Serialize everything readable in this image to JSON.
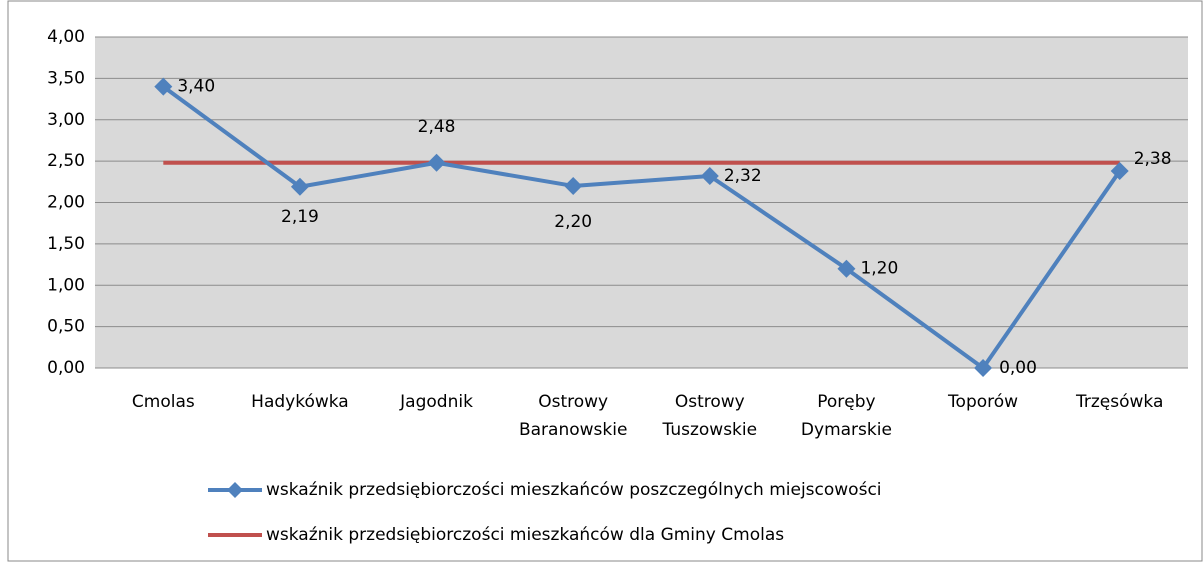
{
  "chart_data": {
    "type": "line",
    "categories": [
      "Cmolas",
      "Hadykówka",
      "Jagodnik",
      "Ostrowy Baranowskie",
      "Ostrowy Tuszowskie",
      "Poręby Dymarskie",
      "Toporów",
      "Trzęsówka"
    ],
    "series": [
      {
        "name": "wskaźnik przedsiębiorczości mieszkańców poszczególnych miejscowości",
        "color": "#4f81bd",
        "marker": "diamond",
        "values": [
          3.4,
          2.19,
          2.48,
          2.2,
          2.32,
          1.2,
          0.0,
          2.38
        ],
        "value_labels": [
          "3,40",
          "2,19",
          "2,48",
          "2,20",
          "2,32",
          "1,20",
          "0,00",
          "2,38"
        ]
      },
      {
        "name": "wskaźnik przedsiębiorczości mieszkańców dla Gminy Cmolas",
        "color": "#c0504d",
        "values": [
          2.48,
          2.48,
          2.48,
          2.48,
          2.48,
          2.48,
          2.48,
          2.48
        ]
      }
    ],
    "ylim": [
      0,
      4
    ],
    "yticks": [
      {
        "value": 0,
        "label": "0,00"
      },
      {
        "value": 0.5,
        "label": "0,50"
      },
      {
        "value": 1,
        "label": "1,00"
      },
      {
        "value": 1.5,
        "label": "1,50"
      },
      {
        "value": 2,
        "label": "2,00"
      },
      {
        "value": 2.5,
        "label": "2,50"
      },
      {
        "value": 3,
        "label": "3,00"
      },
      {
        "value": 3.5,
        "label": "3,50"
      },
      {
        "value": 4,
        "label": "4,00"
      }
    ],
    "grid": true,
    "legend": "bottom"
  }
}
